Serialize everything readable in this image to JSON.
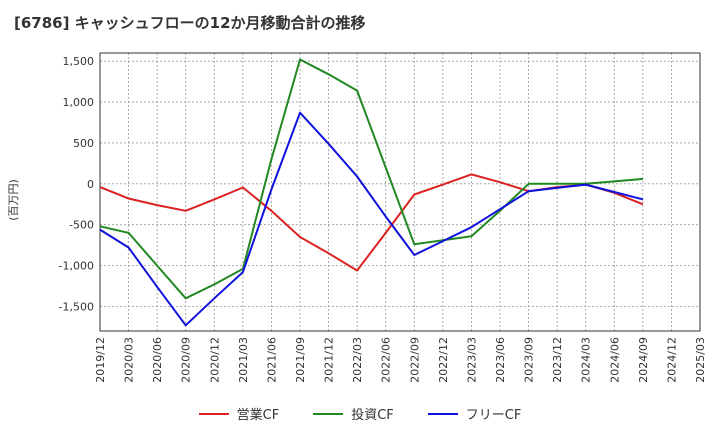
{
  "title": "[6786]  キャッシュフローの12か月移動合計の推移",
  "chart_data": {
    "type": "line",
    "ylabel": "(百万円)",
    "ylim": [
      -1800,
      1600
    ],
    "yticks": [
      1500,
      1000,
      500,
      0,
      -500,
      -1000,
      -1500
    ],
    "ytick_labels": [
      "1,500",
      "1,000",
      "500",
      "0",
      "-500",
      "-1,000",
      "-1,500"
    ],
    "categories": [
      "2019/12",
      "2020/03",
      "2020/06",
      "2020/09",
      "2020/12",
      "2021/03",
      "2021/06",
      "2021/09",
      "2021/12",
      "2022/03",
      "2022/06",
      "2022/09",
      "2022/12",
      "2023/03",
      "2023/06",
      "2023/09",
      "2023/12",
      "2024/03",
      "2024/06",
      "2024/09",
      "2024/12",
      "2025/03"
    ],
    "series": [
      {
        "name": "営業CF",
        "color": "#dd2222",
        "values": [
          -40,
          -180,
          -260,
          -330,
          -190,
          -45,
          -330,
          -650,
          -850,
          -1060,
          -600,
          -130,
          -10,
          115,
          20,
          -90,
          -40,
          -10,
          -110,
          -250,
          null,
          null
        ]
      },
      {
        "name": "投資CF",
        "color": "#228822",
        "values": [
          -520,
          -600,
          -1000,
          -1400,
          -1230,
          -1040,
          300,
          1520,
          1340,
          1140,
          200,
          -740,
          -690,
          -640,
          -330,
          0,
          0,
          0,
          30,
          60,
          null,
          null
        ]
      },
      {
        "name": "フリーCF",
        "color": "#1111dd",
        "values": [
          -560,
          -780,
          -1260,
          -1730,
          -1400,
          -1080,
          -70,
          870,
          490,
          90,
          -400,
          -870,
          -700,
          -530,
          -310,
          -90,
          -50,
          -10,
          -100,
          -190,
          null,
          null
        ]
      }
    ]
  }
}
